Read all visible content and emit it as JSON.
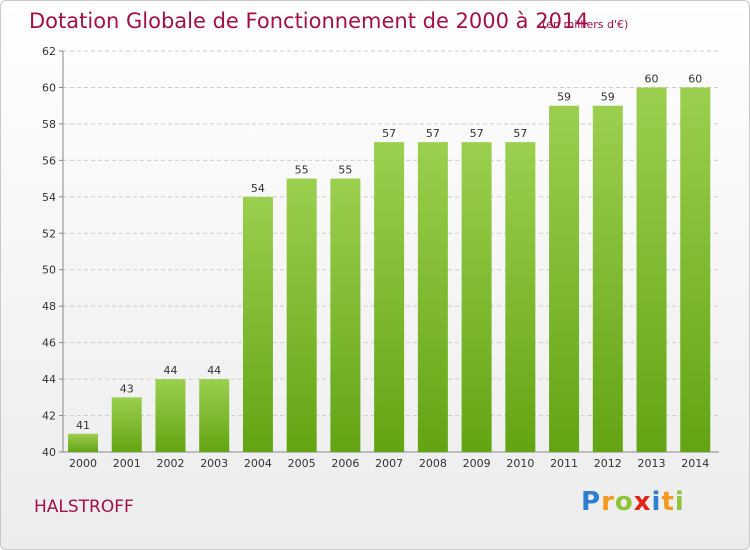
{
  "header": {
    "title": "Dotation Globale de Fonctionnement de 2000 à 2014",
    "unit": "(en milliers d'€)"
  },
  "footer": {
    "commune": "HALSTROFF",
    "logo": "Proxiti"
  },
  "colors": {
    "title": "#a31048",
    "bar_top": "#9ccf4f",
    "bar_bottom": "#63a413",
    "grid": "#cfcfcf"
  },
  "chart_data": {
    "type": "bar",
    "title": "Dotation Globale de Fonctionnement de 2000 à 2014",
    "subtitle": "(en milliers d'€)",
    "xlabel": "",
    "ylabel": "",
    "categories": [
      "2000",
      "2001",
      "2002",
      "2003",
      "2004",
      "2005",
      "2006",
      "2007",
      "2008",
      "2009",
      "2010",
      "2011",
      "2012",
      "2013",
      "2014"
    ],
    "values": [
      41,
      43,
      44,
      44,
      54,
      55,
      55,
      57,
      57,
      57,
      57,
      59,
      59,
      60,
      60
    ],
    "ylim": [
      40,
      62
    ],
    "yticks": [
      40,
      42,
      44,
      46,
      48,
      50,
      52,
      54,
      56,
      58,
      60,
      62
    ],
    "grid": true,
    "data_labels": true
  }
}
